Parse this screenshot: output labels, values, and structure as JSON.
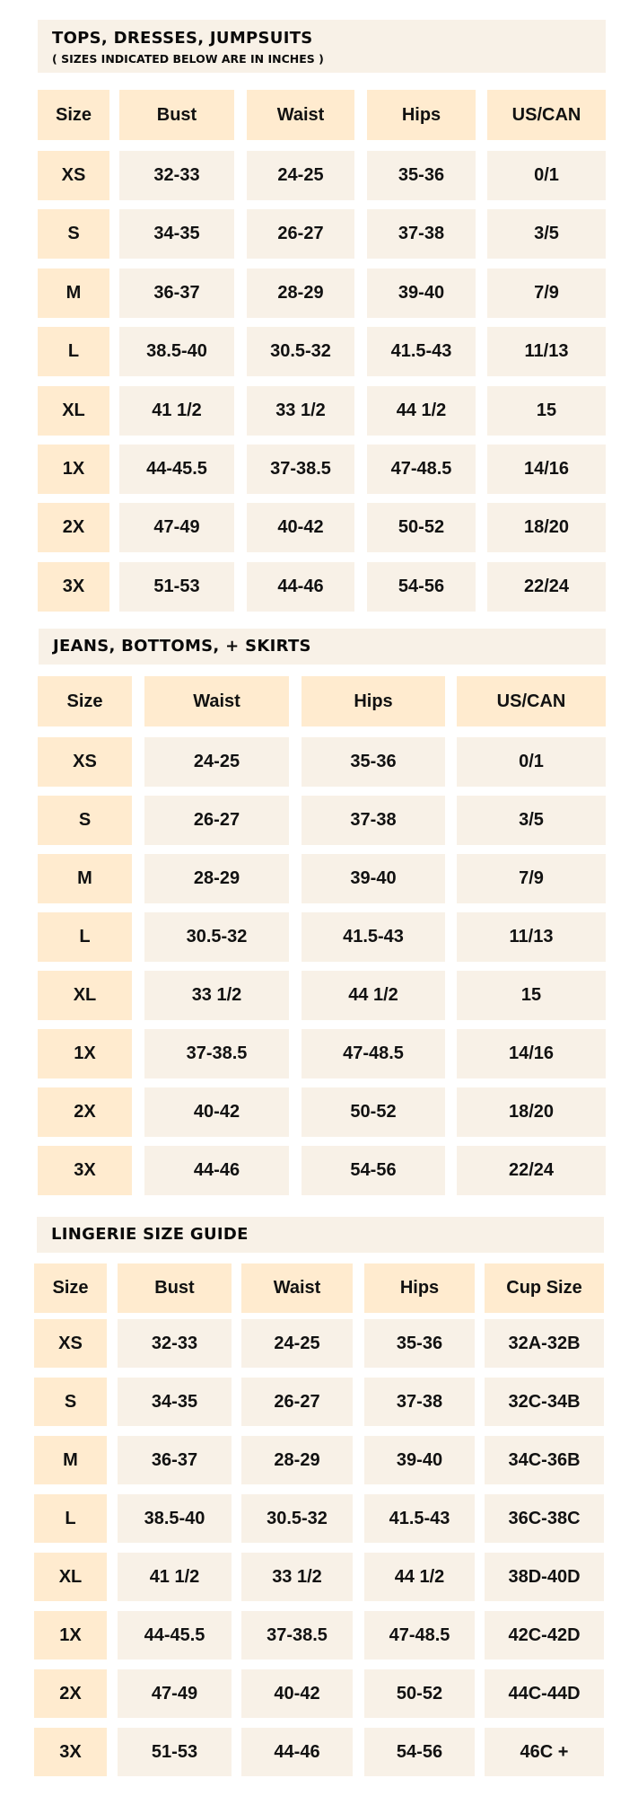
{
  "colors": {
    "header_cell": "#ffebcf",
    "data_cell": "#f8f1e7",
    "title_bg": "#f8f1e7",
    "text": "#111111"
  },
  "tables": [
    {
      "title": "TOPS, DRESSES, JUMPSUITS",
      "subtitle": "( SIZES INDICATED BELOW ARE IN INCHES )",
      "headers": [
        "Size",
        "Bust",
        "Waist",
        "Hips",
        "US/CAN"
      ],
      "rows": [
        [
          "XS",
          "32-33",
          "24-25",
          "35-36",
          "0/1"
        ],
        [
          "S",
          "34-35",
          "26-27",
          "37-38",
          "3/5"
        ],
        [
          "M",
          "36-37",
          "28-29",
          "39-40",
          "7/9"
        ],
        [
          "L",
          "38.5-40",
          "30.5-32",
          "41.5-43",
          "11/13"
        ],
        [
          "XL",
          "41 1/2",
          "33 1/2",
          "44 1/2",
          "15"
        ],
        [
          "1X",
          "44-45.5",
          "37-38.5",
          "47-48.5",
          "14/16"
        ],
        [
          "2X",
          "47-49",
          "40-42",
          "50-52",
          "18/20"
        ],
        [
          "3X",
          "51-53",
          "44-46",
          "54-56",
          "22/24"
        ]
      ]
    },
    {
      "title": "JEANS, BOTTOMS, + SKIRTS",
      "headers": [
        "Size",
        "Waist",
        "Hips",
        "US/CAN"
      ],
      "rows": [
        [
          "XS",
          "24-25",
          "35-36",
          "0/1"
        ],
        [
          "S",
          "26-27",
          "37-38",
          "3/5"
        ],
        [
          "M",
          "28-29",
          "39-40",
          "7/9"
        ],
        [
          "L",
          "30.5-32",
          "41.5-43",
          "11/13"
        ],
        [
          "XL",
          "33 1/2",
          "44 1/2",
          "15"
        ],
        [
          "1X",
          "37-38.5",
          "47-48.5",
          "14/16"
        ],
        [
          "2X",
          "40-42",
          "50-52",
          "18/20"
        ],
        [
          "3X",
          "44-46",
          "54-56",
          "22/24"
        ]
      ]
    },
    {
      "title": "LINGERIE SIZE GUIDE",
      "headers": [
        "Size",
        "Bust",
        "Waist",
        "Hips",
        "Cup Size"
      ],
      "rows": [
        [
          "XS",
          "32-33",
          "24-25",
          "35-36",
          "32A-32B"
        ],
        [
          "S",
          "34-35",
          "26-27",
          "37-38",
          "32C-34B"
        ],
        [
          "M",
          "36-37",
          "28-29",
          "39-40",
          "34C-36B"
        ],
        [
          "L",
          "38.5-40",
          "30.5-32",
          "41.5-43",
          "36C-38C"
        ],
        [
          "XL",
          "41 1/2",
          "33 1/2",
          "44 1/2",
          "38D-40D"
        ],
        [
          "1X",
          "44-45.5",
          "37-38.5",
          "47-48.5",
          "42C-42D"
        ],
        [
          "2X",
          "47-49",
          "40-42",
          "50-52",
          "44C-44D"
        ],
        [
          "3X",
          "51-53",
          "44-46",
          "54-56",
          "46C +"
        ]
      ]
    }
  ]
}
